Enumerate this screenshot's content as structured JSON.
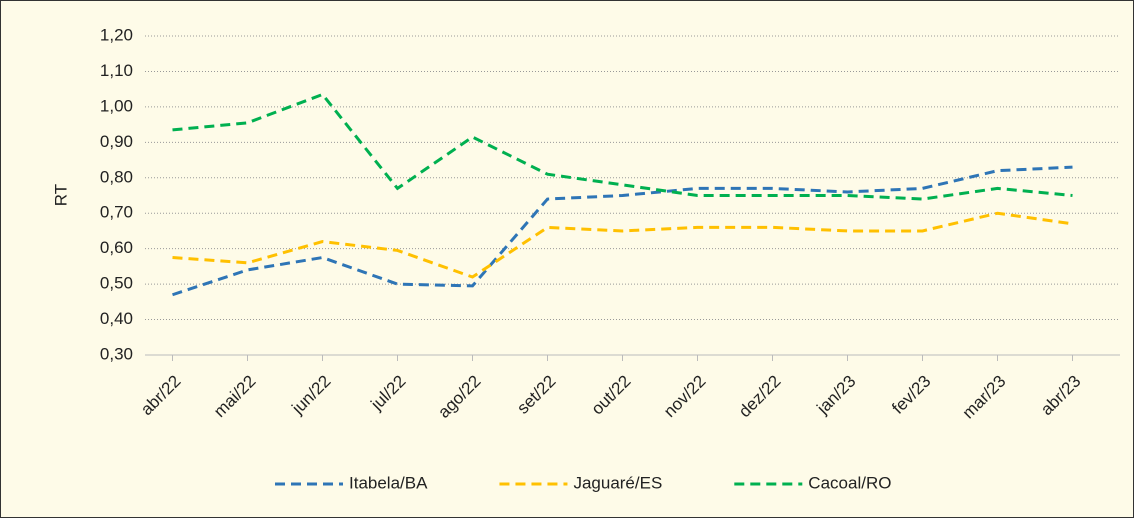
{
  "chart_data": {
    "type": "line",
    "y_label": "RT",
    "categories": [
      "abr/22",
      "mai/22",
      "jun/22",
      "jul/22",
      "ago/22",
      "set/22",
      "out/22",
      "nov/22",
      "dez/22",
      "jan/23",
      "fev/23",
      "mar/23",
      "abr/23"
    ],
    "series": [
      {
        "name": "Itabela/BA",
        "color": "#2e75b6",
        "values": [
          0.47,
          0.54,
          0.575,
          0.5,
          0.495,
          0.74,
          0.75,
          0.77,
          0.77,
          0.76,
          0.77,
          0.82,
          0.83
        ]
      },
      {
        "name": "Jaguaré/ES",
        "color": "#ffc000",
        "values": [
          0.575,
          0.56,
          0.62,
          0.595,
          0.52,
          0.66,
          0.65,
          0.66,
          0.66,
          0.65,
          0.65,
          0.7,
          0.67
        ]
      },
      {
        "name": "Cacoal/RO",
        "color": "#00b050",
        "values": [
          0.935,
          0.955,
          1.035,
          0.77,
          0.915,
          0.81,
          0.78,
          0.75,
          0.75,
          0.75,
          0.74,
          0.77,
          0.75
        ]
      }
    ],
    "ylim": [
      0.3,
      1.2
    ],
    "yticks": [
      {
        "value": 0.3,
        "label": "0,30"
      },
      {
        "value": 0.4,
        "label": "0,40"
      },
      {
        "value": 0.5,
        "label": "0,50"
      },
      {
        "value": 0.6,
        "label": "0,60"
      },
      {
        "value": 0.7,
        "label": "0,70"
      },
      {
        "value": 0.8,
        "label": "0,80"
      },
      {
        "value": 0.9,
        "label": "0,90"
      },
      {
        "value": 1.0,
        "label": "1,00"
      },
      {
        "value": 1.1,
        "label": "1,10"
      },
      {
        "value": 1.2,
        "label": "1,20"
      }
    ],
    "grid": true,
    "legend": "bottom"
  }
}
